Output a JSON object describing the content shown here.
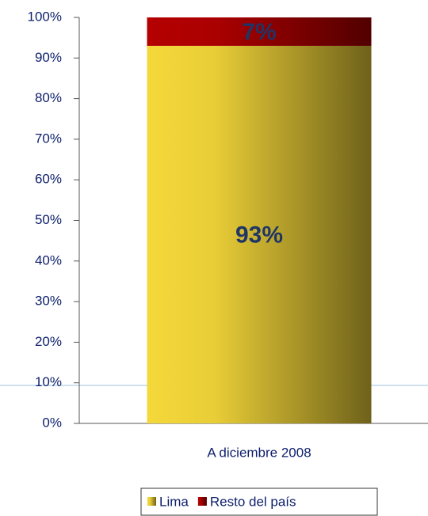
{
  "chart_data": {
    "type": "stacked_bar",
    "categories": [
      "A diciembre 2008"
    ],
    "series": [
      {
        "name": "Lima",
        "color": "#f5d83a",
        "values": [
          93
        ],
        "value_labels": [
          "93%"
        ]
      },
      {
        "name": "Resto del país",
        "color": "#b40000",
        "values": [
          7
        ],
        "value_labels": [
          "7%"
        ]
      }
    ],
    "ylim": [
      0,
      100
    ],
    "yticks": [
      {
        "value": 0,
        "label": "0%"
      },
      {
        "value": 10,
        "label": "10%"
      },
      {
        "value": 20,
        "label": "20%"
      },
      {
        "value": 30,
        "label": "30%"
      },
      {
        "value": 40,
        "label": "40%"
      },
      {
        "value": 50,
        "label": "50%"
      },
      {
        "value": 60,
        "label": "60%"
      },
      {
        "value": 70,
        "label": "70%"
      },
      {
        "value": 80,
        "label": "80%"
      },
      {
        "value": 90,
        "label": "90%"
      },
      {
        "value": 100,
        "label": "100%"
      }
    ],
    "legend": "bottom"
  }
}
